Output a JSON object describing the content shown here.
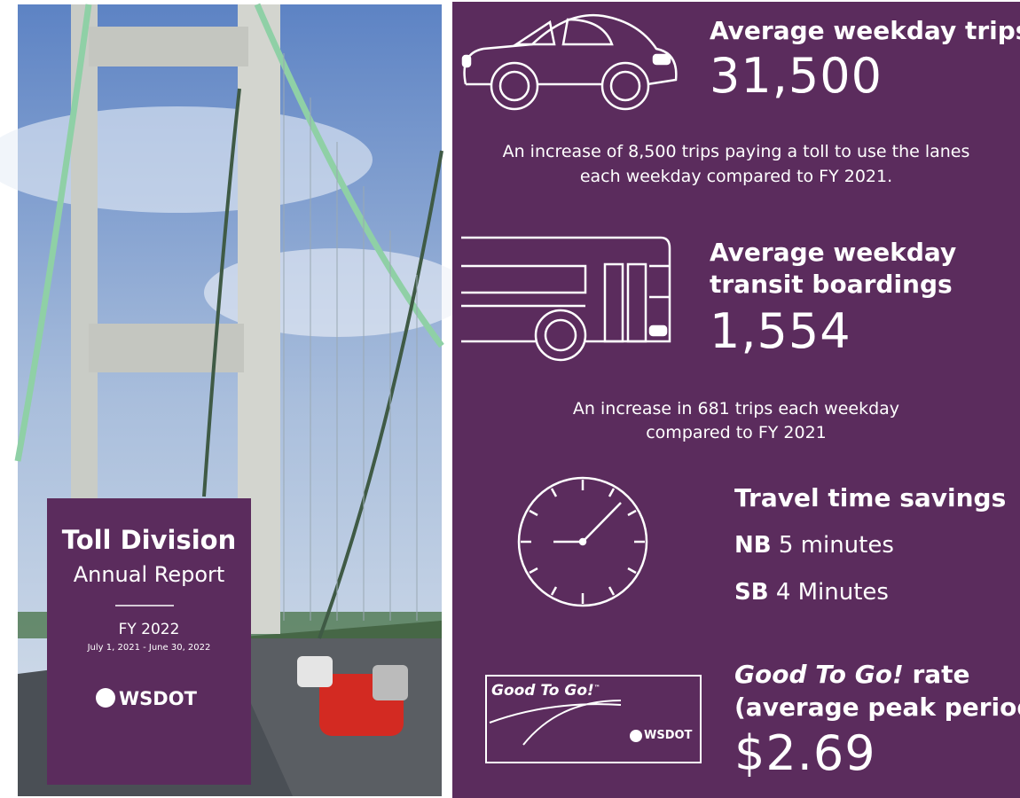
{
  "cover": {
    "title_line1": "Toll Division",
    "title_line2": "Annual Report",
    "fiscal_year": "FY 2022",
    "date_range": "July 1, 2021 - June 30, 2022",
    "logo": "WSDOT"
  },
  "stats": [
    {
      "heading": [
        "Average weekday trips"
      ],
      "value": "31,500",
      "note": [
        "An increase of 8,500 trips paying a toll to use the lanes",
        "each weekday compared to FY 2021."
      ]
    },
    {
      "heading": [
        "Average weekday",
        "transit boardings"
      ],
      "value": "1,554",
      "note": [
        "An increase in 681 trips each weekday",
        "compared to FY 2021"
      ]
    },
    {
      "heading": [
        "Travel time savings"
      ],
      "lines": [
        {
          "label": "NB",
          "text": "5 minutes"
        },
        {
          "label": "SB",
          "text": "4 Minutes"
        }
      ]
    },
    {
      "heading_italic": "Good To Go!",
      "heading_rest": "rate",
      "heading_line2": "(average peak period)",
      "value": "$2.69",
      "card_text": "Good To Go!",
      "card_mark": "™",
      "card_logo": "WSDOT"
    }
  ]
}
